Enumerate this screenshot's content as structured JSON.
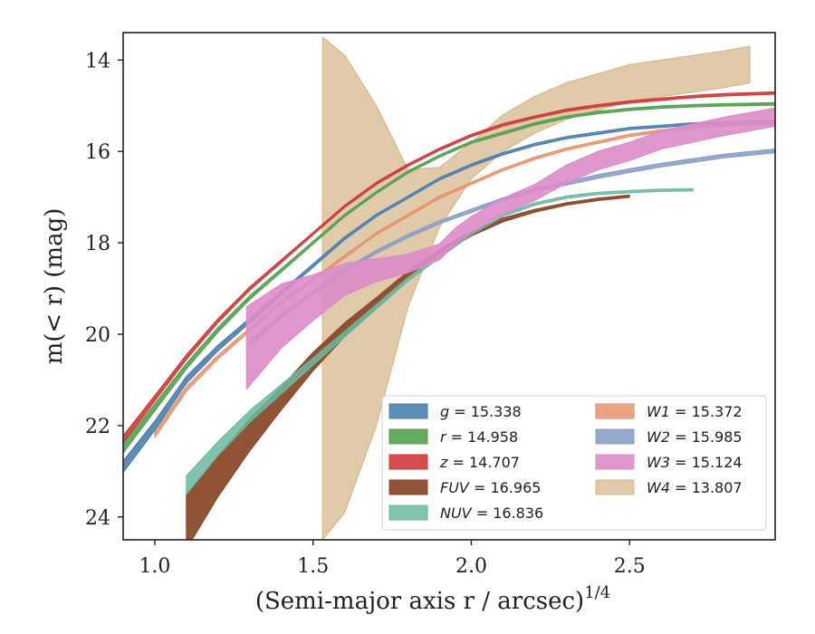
{
  "chart_data": {
    "type": "line",
    "xlabel": "(Semi-major axis r / arcsec)",
    "xlabel_superscript": "1/4",
    "ylabel": "m(< r) (mag)",
    "xlim": [
      0.9,
      2.96
    ],
    "ylim": [
      24.5,
      13.4
    ],
    "y_inverted": true,
    "x_ticks": [
      1.0,
      1.5,
      2.0,
      2.5
    ],
    "x_tick_labels": [
      "1.0",
      "1.5",
      "2.0",
      "2.5"
    ],
    "y_ticks": [
      14,
      16,
      18,
      20,
      22,
      24
    ],
    "y_tick_labels": [
      "14",
      "16",
      "18",
      "20",
      "22",
      "24"
    ],
    "grid": false,
    "legend_placement": "lower-right",
    "series": [
      {
        "name": "g = 15.338",
        "band": "g",
        "value": "15.338",
        "color": "#4c7fb0",
        "fill_opacity": 0.9,
        "x": [
          0.9,
          1.0,
          1.1,
          1.2,
          1.3,
          1.4,
          1.5,
          1.6,
          1.7,
          1.8,
          1.9,
          2.0,
          2.1,
          2.2,
          2.3,
          2.4,
          2.5,
          2.6,
          2.7,
          2.8,
          2.96
        ],
        "y": [
          22.9,
          22.0,
          21.0,
          20.3,
          19.7,
          19.1,
          18.5,
          17.9,
          17.4,
          17.0,
          16.6,
          16.3,
          16.05,
          15.85,
          15.7,
          15.6,
          15.5,
          15.45,
          15.4,
          15.38,
          15.35
        ],
        "width": [
          0.25,
          0.2,
          0.15,
          0.12,
          0.1,
          0.08,
          0.07,
          0.06,
          0.05,
          0.05,
          0.05,
          0.05,
          0.05,
          0.05,
          0.05,
          0.05,
          0.05,
          0.05,
          0.05,
          0.05,
          0.05
        ]
      },
      {
        "name": "r = 14.958",
        "band": "r",
        "value": "14.958",
        "color": "#55a050",
        "fill_opacity": 0.9,
        "x": [
          0.9,
          1.0,
          1.1,
          1.2,
          1.3,
          1.4,
          1.5,
          1.6,
          1.7,
          1.8,
          1.9,
          2.0,
          2.1,
          2.2,
          2.3,
          2.4,
          2.5,
          2.6,
          2.7,
          2.8,
          2.96
        ],
        "y": [
          22.5,
          21.6,
          20.7,
          19.9,
          19.2,
          18.6,
          18.0,
          17.4,
          16.9,
          16.45,
          16.1,
          15.8,
          15.6,
          15.4,
          15.25,
          15.15,
          15.08,
          15.03,
          15.0,
          14.98,
          14.96
        ],
        "width": [
          0.2,
          0.15,
          0.12,
          0.1,
          0.08,
          0.07,
          0.06,
          0.05,
          0.05,
          0.05,
          0.05,
          0.05,
          0.05,
          0.05,
          0.05,
          0.05,
          0.05,
          0.05,
          0.05,
          0.05,
          0.05
        ]
      },
      {
        "name": "z = 14.707",
        "band": "z",
        "value": "14.707",
        "color": "#d03a3a",
        "fill_opacity": 0.9,
        "x": [
          0.9,
          1.0,
          1.1,
          1.2,
          1.3,
          1.4,
          1.5,
          1.6,
          1.7,
          1.8,
          1.9,
          2.0,
          2.1,
          2.2,
          2.3,
          2.4,
          2.5,
          2.6,
          2.7,
          2.8,
          2.96
        ],
        "y": [
          22.3,
          21.4,
          20.5,
          19.7,
          19.0,
          18.4,
          17.8,
          17.2,
          16.7,
          16.3,
          15.95,
          15.65,
          15.42,
          15.25,
          15.1,
          15.0,
          14.92,
          14.86,
          14.8,
          14.76,
          14.72
        ],
        "width": [
          0.15,
          0.12,
          0.1,
          0.08,
          0.07,
          0.06,
          0.05,
          0.05,
          0.05,
          0.05,
          0.05,
          0.05,
          0.05,
          0.05,
          0.05,
          0.05,
          0.05,
          0.05,
          0.05,
          0.05,
          0.05
        ]
      },
      {
        "name": "FUV = 16.965",
        "band": "FUV",
        "value": "16.965",
        "color": "#8b4a2b",
        "fill_opacity": 0.95,
        "x": [
          1.1,
          1.2,
          1.3,
          1.4,
          1.5,
          1.6,
          1.7,
          1.8,
          1.9,
          2.0,
          2.1,
          2.2,
          2.3,
          2.4,
          2.5
        ],
        "y": [
          24.1,
          23.1,
          22.2,
          21.4,
          20.6,
          19.9,
          19.3,
          18.7,
          18.2,
          17.8,
          17.5,
          17.3,
          17.15,
          17.05,
          16.98
        ],
        "width": [
          1.2,
          0.9,
          0.7,
          0.5,
          0.4,
          0.3,
          0.2,
          0.15,
          0.12,
          0.1,
          0.08,
          0.06,
          0.05,
          0.05,
          0.05
        ]
      },
      {
        "name": "NUV = 16.836",
        "band": "NUV",
        "value": "16.836",
        "color": "#6cb8a0",
        "fill_opacity": 0.85,
        "x": [
          1.1,
          1.2,
          1.3,
          1.4,
          1.5,
          1.6,
          1.7,
          1.8,
          1.9,
          2.0,
          2.1,
          2.2,
          2.3,
          2.4,
          2.5,
          2.6,
          2.7
        ],
        "y": [
          23.3,
          22.5,
          21.8,
          21.2,
          20.6,
          20.0,
          19.4,
          18.8,
          18.3,
          17.8,
          17.4,
          17.15,
          17.0,
          16.92,
          16.88,
          16.85,
          16.84
        ],
        "width": [
          0.4,
          0.3,
          0.25,
          0.2,
          0.15,
          0.12,
          0.1,
          0.08,
          0.06,
          0.05,
          0.05,
          0.05,
          0.05,
          0.05,
          0.05,
          0.05,
          0.05
        ]
      },
      {
        "name": "W1 = 15.372",
        "band": "W1",
        "value": "15.372",
        "color": "#e8926b",
        "fill_opacity": 0.85,
        "x": [
          1.0,
          1.1,
          1.2,
          1.3,
          1.4,
          1.5,
          1.6,
          1.7,
          1.8,
          1.9,
          2.0,
          2.1,
          2.2,
          2.3,
          2.4,
          2.5,
          2.6,
          2.7,
          2.8,
          2.96
        ],
        "y": [
          22.2,
          21.2,
          20.5,
          19.9,
          19.3,
          18.8,
          18.3,
          17.8,
          17.4,
          17.0,
          16.7,
          16.4,
          16.15,
          15.95,
          15.8,
          15.65,
          15.55,
          15.48,
          15.42,
          15.38
        ],
        "width": [
          0.12,
          0.1,
          0.08,
          0.07,
          0.06,
          0.05,
          0.05,
          0.05,
          0.05,
          0.05,
          0.05,
          0.05,
          0.05,
          0.05,
          0.05,
          0.05,
          0.05,
          0.05,
          0.05,
          0.05
        ]
      },
      {
        "name": "W2 = 15.985",
        "band": "W2",
        "value": "15.985",
        "color": "#8c9ec8",
        "fill_opacity": 0.9,
        "x": [
          1.3,
          1.4,
          1.5,
          1.6,
          1.7,
          1.8,
          1.9,
          2.0,
          2.1,
          2.2,
          2.3,
          2.4,
          2.5,
          2.6,
          2.7,
          2.8,
          2.96
        ],
        "y": [
          20.2,
          19.6,
          19.1,
          18.6,
          18.2,
          17.85,
          17.55,
          17.3,
          17.05,
          16.85,
          16.7,
          16.55,
          16.42,
          16.3,
          16.2,
          16.1,
          15.99
        ],
        "width": [
          0.1,
          0.09,
          0.08,
          0.07,
          0.07,
          0.07,
          0.07,
          0.07,
          0.07,
          0.07,
          0.07,
          0.08,
          0.08,
          0.08,
          0.08,
          0.08,
          0.08
        ]
      },
      {
        "name": "W3 = 15.124",
        "band": "W3",
        "value": "15.124",
        "color": "#dc8cc8",
        "fill_opacity": 0.9,
        "x": [
          1.29,
          1.4,
          1.5,
          1.6,
          1.7,
          1.8,
          1.9,
          1.95,
          2.0,
          2.1,
          2.2,
          2.3,
          2.4,
          2.5,
          2.6,
          2.7,
          2.8,
          2.96
        ],
        "y": [
          20.3,
          19.6,
          19.2,
          18.8,
          18.6,
          18.45,
          18.2,
          17.85,
          17.6,
          17.2,
          16.9,
          16.5,
          16.2,
          16.0,
          15.75,
          15.6,
          15.45,
          15.25
        ],
        "width": [
          1.8,
          1.4,
          1.0,
          0.7,
          0.5,
          0.4,
          0.35,
          0.35,
          0.35,
          0.35,
          0.35,
          0.4,
          0.4,
          0.4,
          0.4,
          0.4,
          0.4,
          0.4
        ]
      },
      {
        "name": "W4 = 13.807",
        "band": "W4",
        "value": "13.807",
        "color": "#d6b88c",
        "fill_opacity": 0.75,
        "x": [
          1.53,
          1.6,
          1.7,
          1.8,
          1.9,
          2.0,
          2.1,
          2.2,
          2.3,
          2.4,
          2.5,
          2.6,
          2.7,
          2.8,
          2.88
        ],
        "y": [
          19.0,
          18.9,
          18.5,
          17.9,
          17.0,
          16.2,
          15.6,
          15.2,
          14.9,
          14.7,
          14.5,
          14.4,
          14.3,
          14.2,
          14.1
        ],
        "width": [
          11.0,
          10.0,
          7.0,
          3.0,
          1.3,
          0.8,
          0.8,
          0.8,
          0.8,
          0.8,
          0.8,
          0.8,
          0.8,
          0.8,
          0.8
        ]
      }
    ]
  }
}
